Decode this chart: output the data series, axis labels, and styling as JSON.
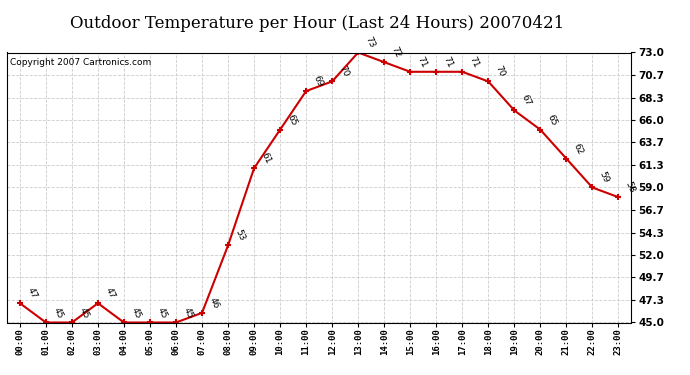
{
  "title": "Outdoor Temperature per Hour (Last 24 Hours) 20070421",
  "copyright": "Copyright 2007 Cartronics.com",
  "hours": [
    "00:00",
    "01:00",
    "02:00",
    "03:00",
    "04:00",
    "05:00",
    "06:00",
    "07:00",
    "08:00",
    "09:00",
    "10:00",
    "11:00",
    "12:00",
    "13:00",
    "14:00",
    "15:00",
    "16:00",
    "17:00",
    "18:00",
    "19:00",
    "20:00",
    "21:00",
    "22:00",
    "23:00"
  ],
  "temps": [
    47,
    45,
    45,
    47,
    45,
    45,
    45,
    46,
    53,
    61,
    65,
    69,
    70,
    73,
    72,
    71,
    71,
    71,
    70,
    67,
    65,
    62,
    59,
    58
  ],
  "line_color": "#cc0000",
  "marker": "+",
  "marker_size": 5,
  "marker_linewidth": 1.5,
  "ylim": [
    45.0,
    73.0
  ],
  "yticks": [
    45.0,
    47.3,
    49.7,
    52.0,
    54.3,
    56.7,
    59.0,
    61.3,
    63.7,
    66.0,
    68.3,
    70.7,
    73.0
  ],
  "ytick_labels": [
    "45.0",
    "47.3",
    "49.7",
    "52.0",
    "54.3",
    "56.7",
    "59.0",
    "61.3",
    "63.7",
    "66.0",
    "68.3",
    "70.7",
    "73.0"
  ],
  "bg_color": "#ffffff",
  "grid_color": "#cccccc",
  "title_fontsize": 12,
  "xlabel_fontsize": 6.5,
  "ylabel_fontsize": 7.5,
  "annotation_fontsize": 6.5,
  "copyright_fontsize": 6.5
}
